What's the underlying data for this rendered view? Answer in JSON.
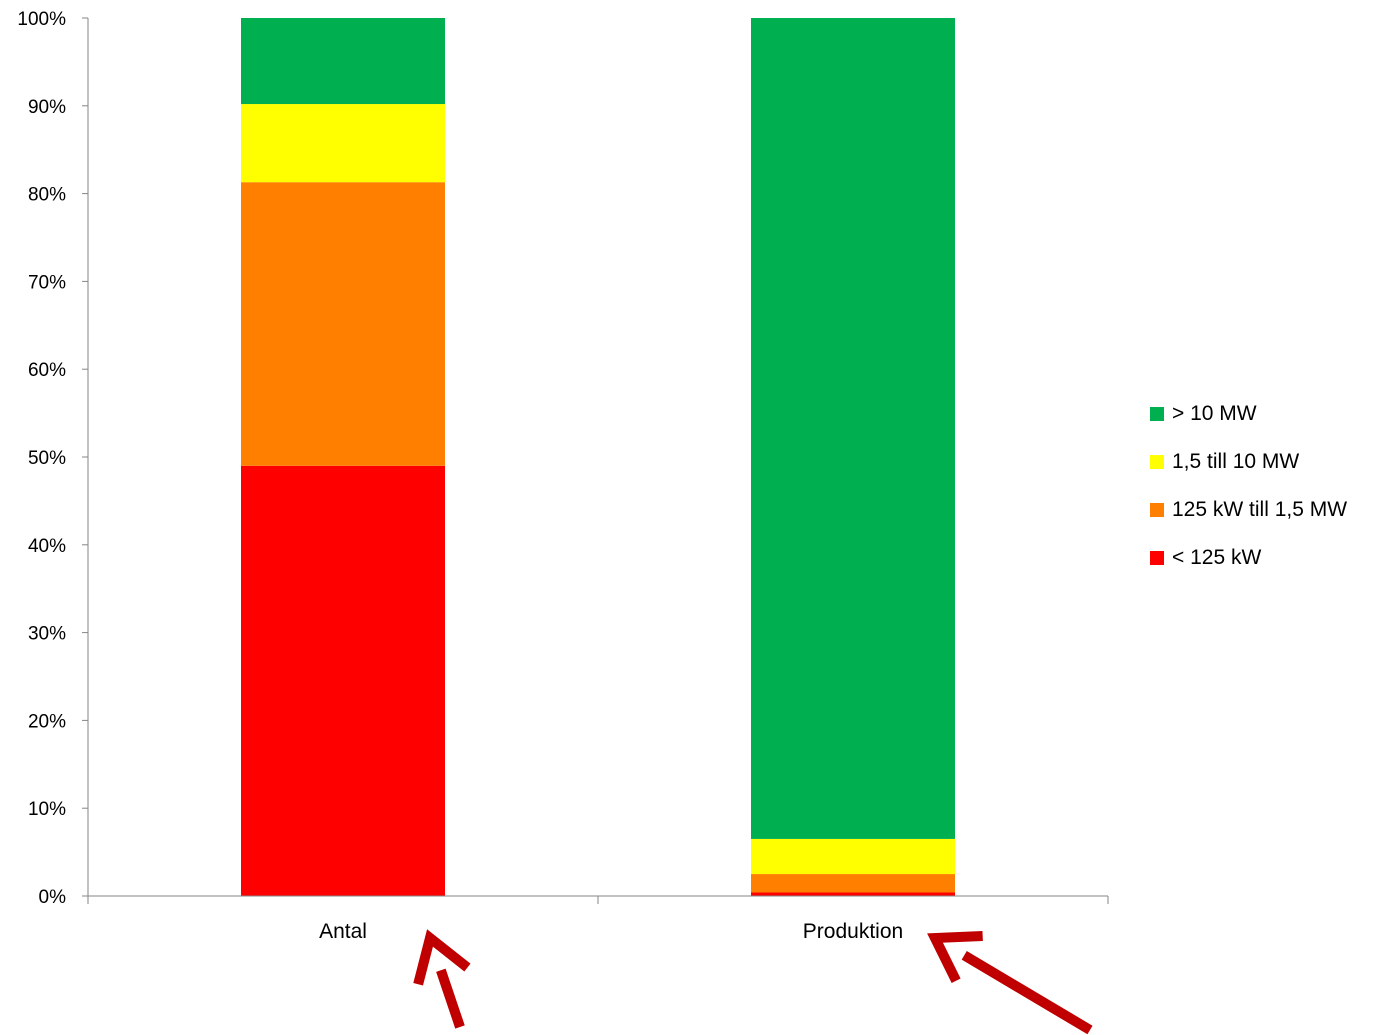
{
  "chart_data": {
    "type": "bar",
    "stacked": true,
    "percent_stacked": true,
    "categories": [
      "Antal",
      "Produktion"
    ],
    "series": [
      {
        "name": "< 125 kW",
        "color": "#ff0000",
        "values": [
          49,
          0.4
        ]
      },
      {
        "name": "125 kW till 1,5 MW",
        "color": "#ff8000",
        "values": [
          32.3,
          2.1
        ]
      },
      {
        "name": "1,5 till 10 MW",
        "color": "#ffff00",
        "values": [
          8.9,
          4.0
        ]
      },
      {
        "name": "> 10 MW",
        "color": "#00b050",
        "values": [
          9.8,
          93.5
        ]
      }
    ],
    "y_ticks": [
      "0%",
      "10%",
      "20%",
      "30%",
      "40%",
      "50%",
      "60%",
      "70%",
      "80%",
      "90%",
      "100%"
    ],
    "ylim": [
      0,
      100
    ],
    "legend_position": "right",
    "legend_order": [
      "> 10 MW",
      "1,5 till 10 MW",
      "125 kW till 1,5 MW",
      "< 125 kW"
    ],
    "annotations": [
      {
        "type": "arrow",
        "color": "#c00000",
        "points_to": "Antal"
      },
      {
        "type": "arrow",
        "color": "#c00000",
        "points_to": "Produktion"
      }
    ]
  }
}
